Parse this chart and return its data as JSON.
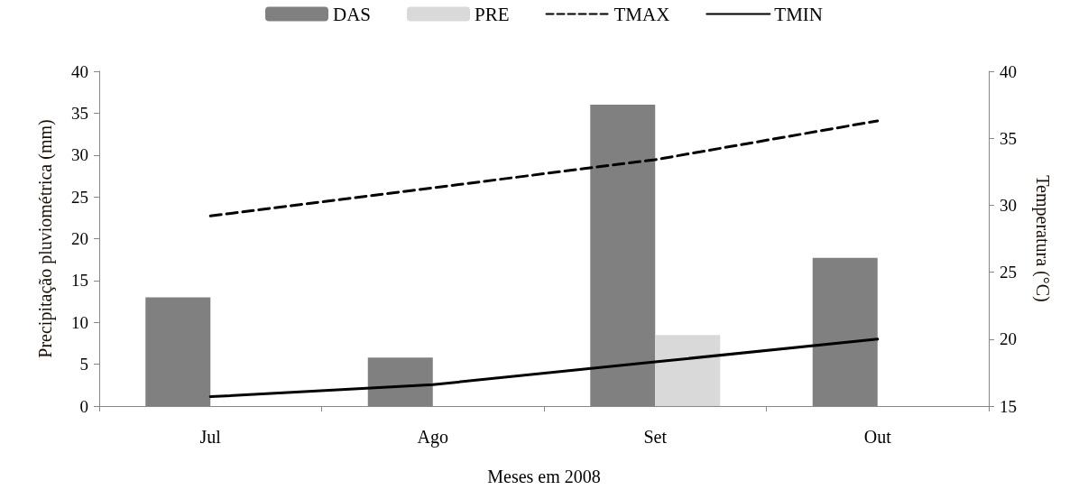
{
  "chart_data": {
    "type": "bar",
    "xlabel": "Meses em 2008",
    "ylabel": "Precipitação pluviométrica (mm)",
    "y2label": "Temperatura (°C)",
    "categories": [
      "Jul",
      "Ago",
      "Set",
      "Out"
    ],
    "series": [
      {
        "name": "DAS",
        "color": "#808080",
        "values": [
          13,
          5.8,
          36,
          17.7
        ]
      },
      {
        "name": "PRE",
        "color": "#d9d9d9",
        "values": [
          0,
          0,
          8.5,
          0
        ]
      },
      {
        "name": "TMAX",
        "type": "line",
        "axis": "y2",
        "color": "#000000",
        "line_style": "dashed",
        "values": [
          29.2,
          31.3,
          33.4,
          36.3
        ]
      },
      {
        "name": "TMIN",
        "type": "line",
        "axis": "y2",
        "color": "#000000",
        "line_style": "solid",
        "values": [
          15.7,
          16.6,
          18.3,
          20.0
        ]
      }
    ],
    "ylim": [
      0,
      40
    ],
    "yticks": [
      0,
      5,
      10,
      15,
      20,
      25,
      30,
      35,
      40
    ],
    "y2lim": [
      15,
      40
    ],
    "y2ticks": [
      15,
      20,
      25,
      30,
      35,
      40
    ],
    "grid": false,
    "legend": "top",
    "marker": "none"
  }
}
